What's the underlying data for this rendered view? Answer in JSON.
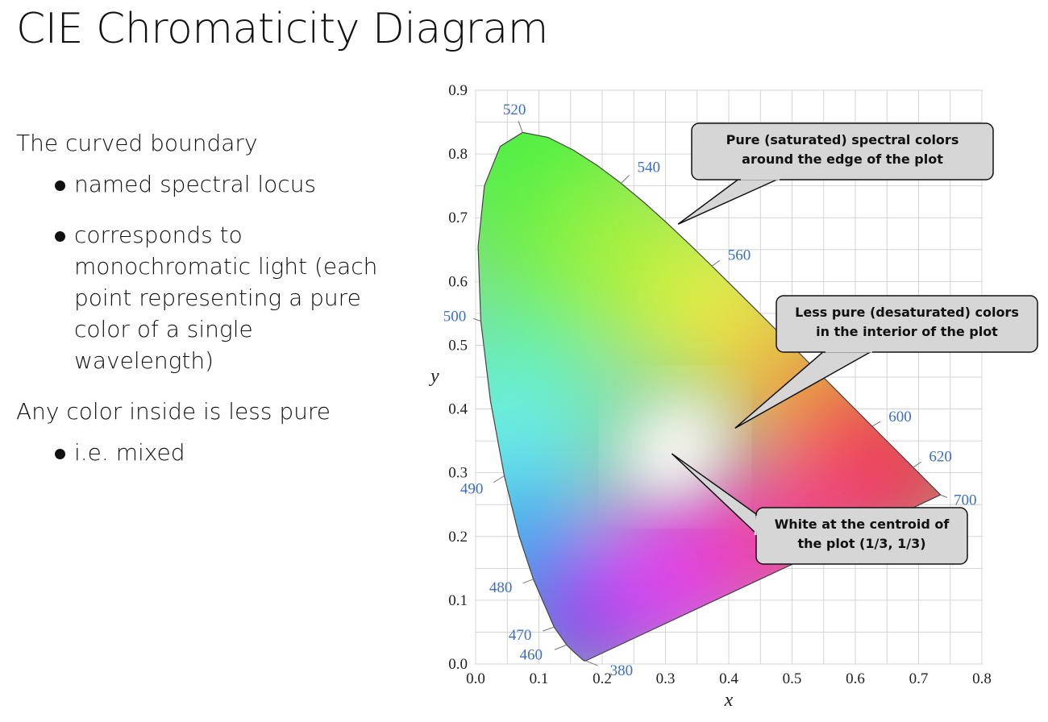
{
  "title": "CIE Chromaticity Diagram",
  "text": {
    "para1": "The curved boundary",
    "bullets1": [
      "named spectral locus",
      "corresponds to monochromatic light (each point representing a pure color of a single wavelength)"
    ],
    "para2": "Any color inside is less pure",
    "bullets2": [
      "i.e. mixed"
    ]
  },
  "chart_data": {
    "type": "scatter",
    "xlabel": "x",
    "ylabel": "y",
    "xlim": [
      0.0,
      0.8
    ],
    "ylim": [
      0.0,
      0.9
    ],
    "grid": true,
    "x_ticks": [
      "0.0",
      "0.1",
      "0.2",
      "0.3",
      "0.4",
      "0.5",
      "0.6",
      "0.7",
      "0.8"
    ],
    "y_ticks": [
      "0.0",
      "0.1",
      "0.2",
      "0.3",
      "0.4",
      "0.5",
      "0.6",
      "0.7",
      "0.8",
      "0.9"
    ],
    "spectral_locus": [
      [
        0.1741,
        0.005
      ],
      [
        0.1738,
        0.0049
      ],
      [
        0.1714,
        0.0051
      ],
      [
        0.1689,
        0.0069
      ],
      [
        0.1644,
        0.0109
      ],
      [
        0.1566,
        0.0177
      ],
      [
        0.144,
        0.0297
      ],
      [
        0.1241,
        0.0578
      ],
      [
        0.0913,
        0.1327
      ],
      [
        0.0687,
        0.2007
      ],
      [
        0.0454,
        0.295
      ],
      [
        0.0235,
        0.4127
      ],
      [
        0.0082,
        0.5384
      ],
      [
        0.0039,
        0.6548
      ],
      [
        0.0139,
        0.7502
      ],
      [
        0.0389,
        0.812
      ],
      [
        0.0743,
        0.8338
      ],
      [
        0.1142,
        0.8262
      ],
      [
        0.1547,
        0.8059
      ],
      [
        0.1929,
        0.7816
      ],
      [
        0.2296,
        0.7543
      ],
      [
        0.2658,
        0.7243
      ],
      [
        0.3016,
        0.6923
      ],
      [
        0.3373,
        0.6589
      ],
      [
        0.3731,
        0.6245
      ],
      [
        0.4087,
        0.5896
      ],
      [
        0.4441,
        0.5547
      ],
      [
        0.4788,
        0.5202
      ],
      [
        0.5125,
        0.4866
      ],
      [
        0.5448,
        0.4544
      ],
      [
        0.5752,
        0.4242
      ],
      [
        0.6029,
        0.3965
      ],
      [
        0.627,
        0.3725
      ],
      [
        0.6482,
        0.3514
      ],
      [
        0.6658,
        0.334
      ],
      [
        0.6801,
        0.3197
      ],
      [
        0.6915,
        0.3083
      ],
      [
        0.7006,
        0.2993
      ],
      [
        0.7079,
        0.292
      ],
      [
        0.714,
        0.2859
      ],
      [
        0.719,
        0.2809
      ],
      [
        0.723,
        0.277
      ],
      [
        0.726,
        0.274
      ],
      [
        0.7283,
        0.2717
      ],
      [
        0.73,
        0.27
      ],
      [
        0.7347,
        0.2653
      ]
    ],
    "wavelength_labels": [
      {
        "label": "380",
        "x": 0.174,
        "y": 0.005
      },
      {
        "label": "460",
        "x": 0.144,
        "y": 0.03
      },
      {
        "label": "470",
        "x": 0.124,
        "y": 0.058
      },
      {
        "label": "480",
        "x": 0.091,
        "y": 0.133
      },
      {
        "label": "490",
        "x": 0.045,
        "y": 0.295
      },
      {
        "label": "500",
        "x": 0.008,
        "y": 0.538
      },
      {
        "label": "520",
        "x": 0.074,
        "y": 0.834
      },
      {
        "label": "540",
        "x": 0.23,
        "y": 0.754
      },
      {
        "label": "560",
        "x": 0.373,
        "y": 0.624
      },
      {
        "label": "600",
        "x": 0.627,
        "y": 0.373
      },
      {
        "label": "620",
        "x": 0.691,
        "y": 0.308
      },
      {
        "label": "700",
        "x": 0.735,
        "y": 0.265
      }
    ],
    "white_point": [
      0.333,
      0.333
    ],
    "callouts": [
      {
        "lines": [
          "Pure (saturated) spectral colors",
          "around the edge of the plot"
        ],
        "points_to": [
          0.32,
          0.69
        ]
      },
      {
        "lines": [
          "Less pure (desaturated) colors",
          "in the interior of the plot"
        ],
        "points_to": [
          0.41,
          0.37
        ]
      },
      {
        "lines": [
          "White at the centroid of",
          "the plot (1/3, 1/3)"
        ],
        "points_to": [
          0.31,
          0.33
        ]
      }
    ]
  }
}
